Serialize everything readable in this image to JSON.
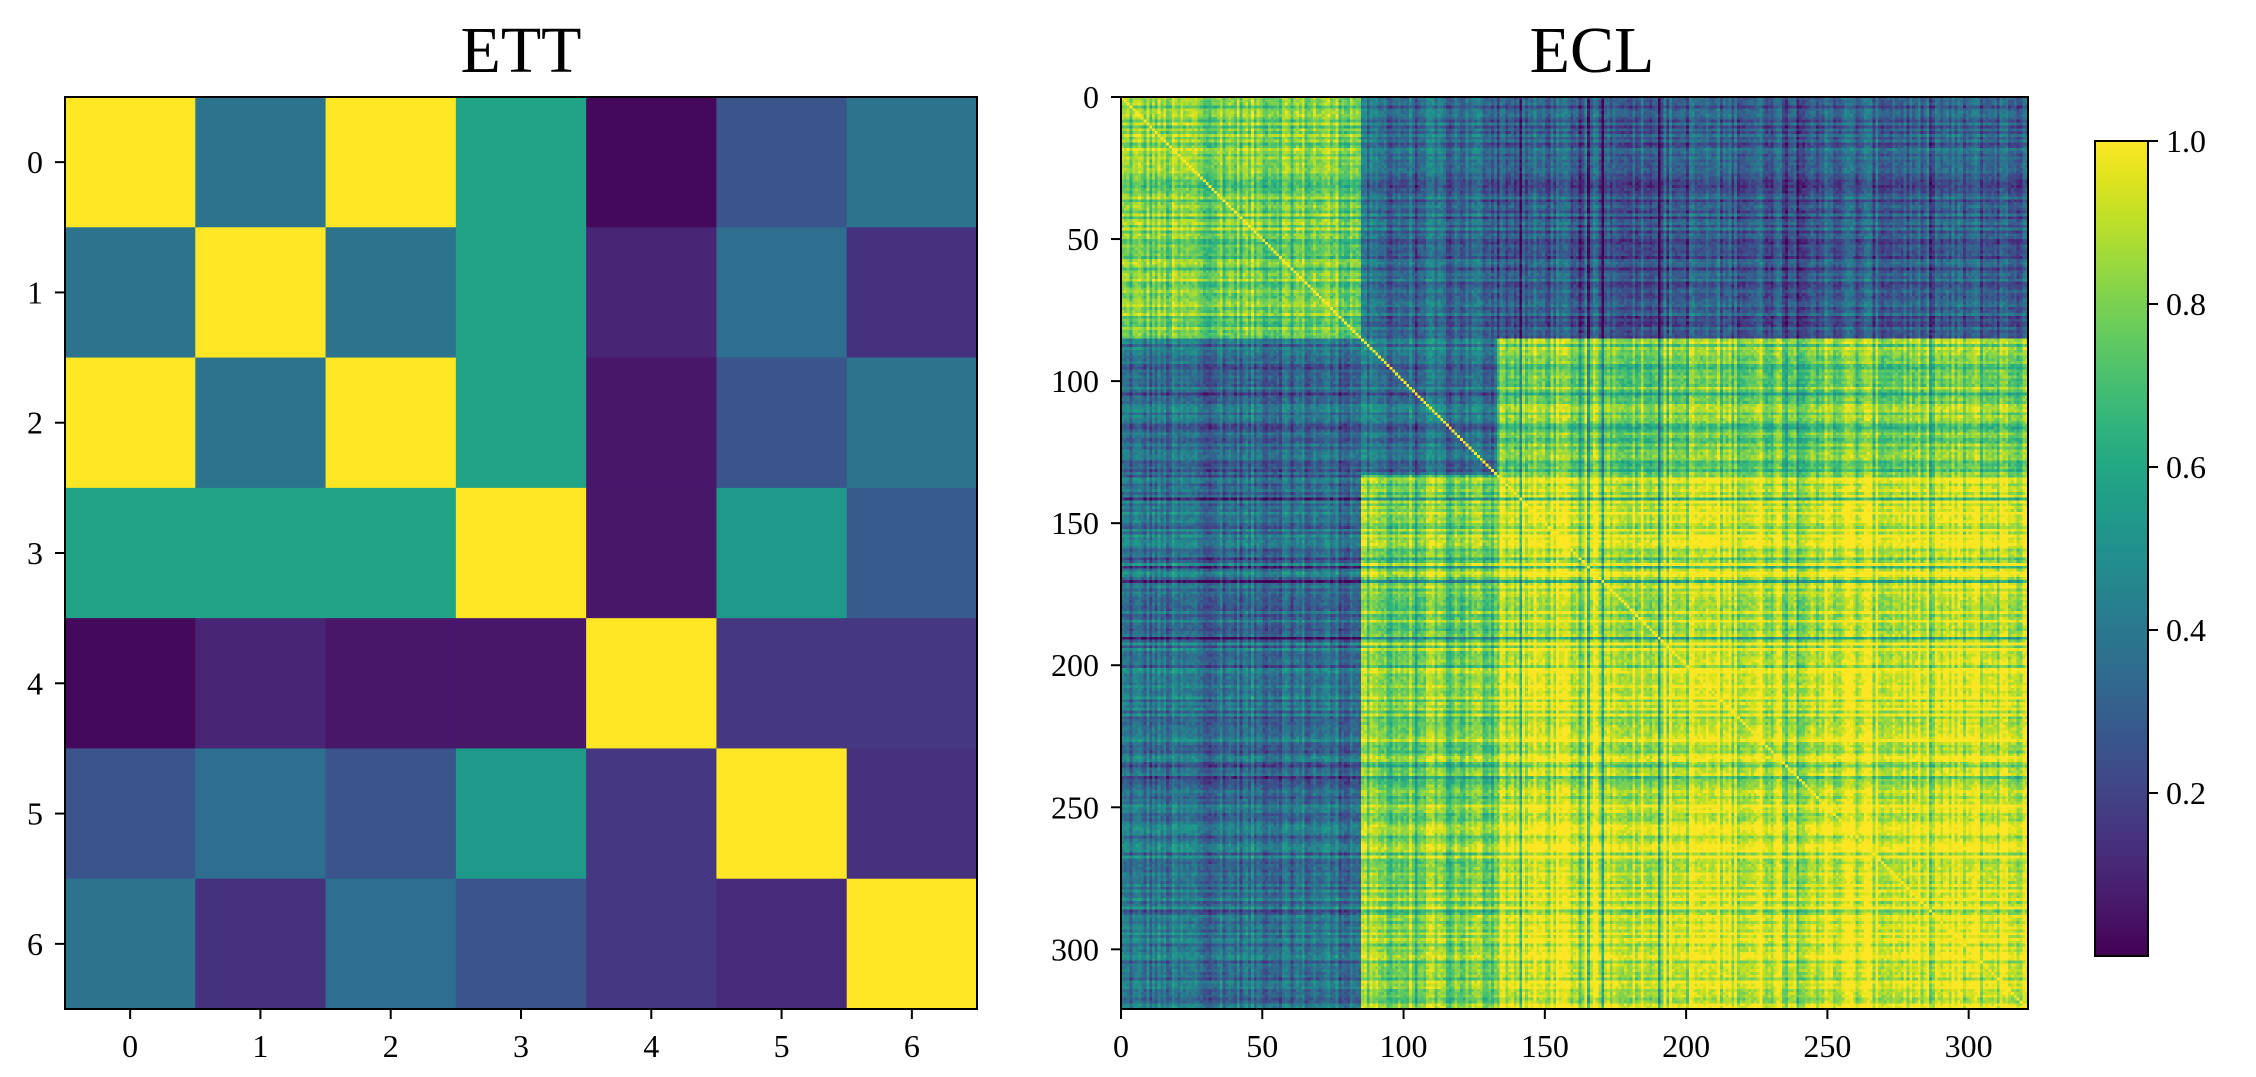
{
  "chart_data": [
    {
      "type": "heatmap",
      "title": "ETT",
      "xlabel": "",
      "ylabel": "",
      "x_ticks": [
        "0",
        "1",
        "2",
        "3",
        "4",
        "5",
        "6"
      ],
      "y_ticks": [
        "0",
        "1",
        "2",
        "3",
        "4",
        "5",
        "6"
      ],
      "matrix": [
        [
          1.0,
          0.38,
          1.0,
          0.58,
          0.02,
          0.26,
          0.38
        ],
        [
          0.38,
          1.0,
          0.38,
          0.58,
          0.1,
          0.36,
          0.14
        ],
        [
          1.0,
          0.38,
          1.0,
          0.58,
          0.06,
          0.26,
          0.38
        ],
        [
          0.58,
          0.58,
          0.58,
          1.0,
          0.06,
          0.54,
          0.28
        ],
        [
          0.02,
          0.1,
          0.06,
          0.06,
          1.0,
          0.16,
          0.16
        ],
        [
          0.26,
          0.36,
          0.26,
          0.54,
          0.16,
          1.0,
          0.14
        ],
        [
          0.38,
          0.14,
          0.36,
          0.26,
          0.16,
          0.12,
          1.0
        ]
      ]
    },
    {
      "type": "heatmap",
      "title": "ECL",
      "xlabel": "",
      "ylabel": "",
      "n_variables": 321,
      "x_ticks": [
        "0",
        "50",
        "100",
        "150",
        "200",
        "250",
        "300"
      ],
      "y_ticks": [
        "0",
        "50",
        "100",
        "150",
        "200",
        "250",
        "300"
      ],
      "block_structure": [
        {
          "rows": [
            0,
            85
          ],
          "cols": [
            0,
            85
          ],
          "level": 0.8
        },
        {
          "rows": [
            0,
            85
          ],
          "cols": [
            85,
            133
          ],
          "level": 0.34
        },
        {
          "rows": [
            0,
            85
          ],
          "cols": [
            133,
            321
          ],
          "level": 0.3
        },
        {
          "rows": [
            85,
            133
          ],
          "cols": [
            0,
            85
          ],
          "level": 0.34
        },
        {
          "rows": [
            85,
            133
          ],
          "cols": [
            85,
            133
          ],
          "level": 0.36
        },
        {
          "rows": [
            85,
            133
          ],
          "cols": [
            133,
            321
          ],
          "level": 0.78
        },
        {
          "rows": [
            133,
            321
          ],
          "cols": [
            0,
            85
          ],
          "level": 0.38
        },
        {
          "rows": [
            133,
            321
          ],
          "cols": [
            85,
            133
          ],
          "level": 0.8
        },
        {
          "rows": [
            133,
            321
          ],
          "cols": [
            133,
            321
          ],
          "level": 0.94
        }
      ],
      "diagonal": 1.0
    }
  ],
  "colorbar": {
    "colormap": "viridis",
    "ticks": [
      "1.0",
      "0.8",
      "0.6",
      "0.4",
      "0.2"
    ],
    "tick_values": [
      1.0,
      0.8,
      0.6,
      0.4,
      0.2
    ],
    "range": [
      0.0,
      1.0
    ]
  }
}
